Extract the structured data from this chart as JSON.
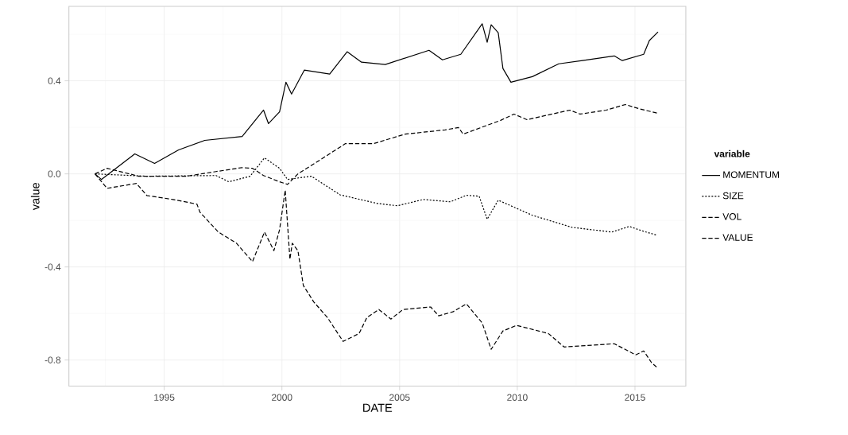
{
  "chart_data": {
    "type": "line",
    "xlabel": "DATE",
    "ylabel": "value",
    "legend_title": "variable",
    "xlim": [
      1990.95,
      2017.16
    ],
    "ylim": [
      -0.912,
      0.72
    ],
    "xticks": [
      1995,
      2000,
      2005,
      2010,
      2015
    ],
    "yticks": [
      {
        "value": -0.8,
        "label": "-0.8"
      },
      {
        "value": -0.4,
        "label": "-0.4"
      },
      {
        "value": 0,
        "label": "0.0"
      },
      {
        "value": 0.4,
        "label": "0.4"
      }
    ],
    "grid": true,
    "legend": "right",
    "marker": "none",
    "series": [
      {
        "name": "MOMENTUM",
        "color": "#000000",
        "line_style": "solid",
        "x": [
          1992.06,
          1992.33,
          1993.75,
          1994.59,
          1995.61,
          1996.72,
          1998.31,
          1999.22,
          1999.43,
          1999.9,
          2000.17,
          2000.41,
          2000.95,
          2002.03,
          2002.77,
          2003.38,
          2004.39,
          2006.25,
          2006.82,
          2007.6,
          2008.51,
          2008.72,
          2008.89,
          2009.19,
          2009.39,
          2009.73,
          2010.64,
          2011.76,
          2012.77,
          2014.12,
          2014.46,
          2015.37,
          2015.61,
          2015.98
        ],
        "values": [
          0,
          -0.024,
          0.086,
          0.045,
          0.103,
          0.144,
          0.161,
          0.274,
          0.216,
          0.267,
          0.394,
          0.343,
          0.446,
          0.429,
          0.525,
          0.48,
          0.47,
          0.531,
          0.49,
          0.514,
          0.645,
          0.566,
          0.641,
          0.607,
          0.453,
          0.394,
          0.418,
          0.473,
          0.487,
          0.507,
          0.487,
          0.514,
          0.573,
          0.61
        ]
      },
      {
        "name": "SIZE",
        "color": "#000000",
        "line_style": "dotted",
        "x": [
          1992.06,
          1994.26,
          1997.2,
          1997.74,
          1998.65,
          1999.26,
          1999.9,
          2000.24,
          2001.25,
          2002.47,
          2004.05,
          2004.9,
          2006.01,
          2007.16,
          2007.84,
          2008.38,
          2008.72,
          2009.19,
          2010.64,
          2012.33,
          2014.02,
          2014.76,
          2015.37,
          2015.95
        ],
        "values": [
          0,
          -0.01,
          -0.007,
          -0.034,
          -0.01,
          0.069,
          0.024,
          -0.024,
          -0.01,
          -0.09,
          -0.127,
          -0.137,
          -0.11,
          -0.12,
          -0.092,
          -0.096,
          -0.195,
          -0.113,
          -0.178,
          -0.23,
          -0.25,
          -0.226,
          -0.247,
          -0.264
        ]
      },
      {
        "name": "VOL",
        "color": "#000000",
        "line_style": "dashed",
        "x": [
          1992.06,
          1992.57,
          1993.82,
          1994.26,
          1995.37,
          1996.39,
          1996.52,
          1997.3,
          1998.07,
          1998.75,
          1999.26,
          1999.66,
          1999.9,
          2000.14,
          2000.34,
          2000.44,
          2000.68,
          2000.91,
          2001.35,
          2001.93,
          2002.6,
          2003.28,
          2003.61,
          2004.12,
          2004.63,
          2005.14,
          2006.32,
          2006.66,
          2007.26,
          2007.84,
          2008.51,
          2008.89,
          2009.39,
          2009.97,
          2011.32,
          2011.99,
          2014.12,
          2015.03,
          2015.37,
          2015.71,
          2015.95
        ],
        "values": [
          0,
          -0.062,
          -0.041,
          -0.093,
          -0.11,
          -0.13,
          -0.165,
          -0.25,
          -0.298,
          -0.377,
          -0.25,
          -0.33,
          -0.24,
          -0.07,
          -0.367,
          -0.298,
          -0.33,
          -0.48,
          -0.55,
          -0.617,
          -0.72,
          -0.686,
          -0.617,
          -0.583,
          -0.624,
          -0.583,
          -0.572,
          -0.61,
          -0.593,
          -0.559,
          -0.641,
          -0.754,
          -0.675,
          -0.651,
          -0.686,
          -0.744,
          -0.73,
          -0.778,
          -0.761,
          -0.812,
          -0.833
        ]
      },
      {
        "name": "VALUE",
        "color": "#000000",
        "line_style": "dashed",
        "x": [
          1992.06,
          1992.57,
          1993.92,
          1995.95,
          1997.2,
          1998.31,
          1998.75,
          1999.22,
          1999.9,
          2000.24,
          2000.68,
          2001.59,
          2002.7,
          2003.89,
          2005.24,
          2006.93,
          2007.5,
          2007.7,
          2009.29,
          2009.86,
          2010.41,
          2012.23,
          2012.67,
          2013.78,
          2014.59,
          2015.14,
          2015.95
        ],
        "values": [
          0,
          0.024,
          -0.01,
          -0.01,
          0.01,
          0.027,
          0.024,
          -0.007,
          -0.034,
          -0.045,
          0,
          0.058,
          0.13,
          0.13,
          0.171,
          0.189,
          0.199,
          0.171,
          0.23,
          0.257,
          0.233,
          0.274,
          0.257,
          0.274,
          0.298,
          0.281,
          0.261
        ]
      }
    ]
  }
}
